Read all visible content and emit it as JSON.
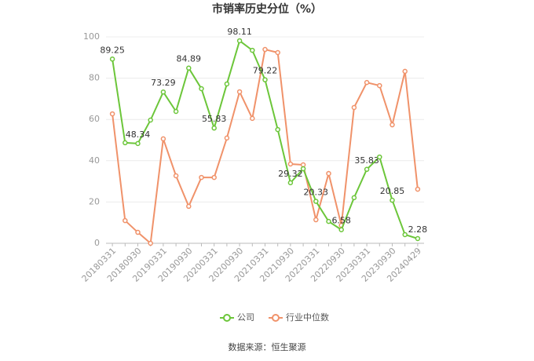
{
  "chart_data": {
    "type": "line",
    "title": "市销率历史分位（%）",
    "source": "数据来源：恒生聚源",
    "categories": [
      "20180331",
      null,
      "20180930",
      null,
      "20190331",
      null,
      "20190930",
      null,
      "20200331",
      null,
      "20200930",
      null,
      "20210331",
      null,
      "20210930",
      null,
      "20220331",
      null,
      "20220930",
      null,
      "20230331",
      null,
      "20230930",
      null,
      "20240429"
    ],
    "series": [
      {
        "name": "公司",
        "color": "#6cc63a",
        "values": [
          89.25,
          48.7,
          48.34,
          59.7,
          73.29,
          63.9,
          84.89,
          74.9,
          55.83,
          77.2,
          98.11,
          93.5,
          79.22,
          55.1,
          29.32,
          36.1,
          20.33,
          10.6,
          6.58,
          22.1,
          35.83,
          41.8,
          20.85,
          4.2,
          2.28
        ]
      },
      {
        "name": "行业中位数",
        "color": "#f0926a",
        "values": [
          62.7,
          11,
          5.3,
          0,
          50.6,
          32.7,
          17.9,
          31.9,
          31.9,
          51,
          73.4,
          60.5,
          93.9,
          92.4,
          38.4,
          38,
          11.4,
          33.8,
          8.7,
          65.8,
          77.9,
          76.4,
          57.4,
          83.3,
          26.2
        ]
      }
    ],
    "ylim": [
      0,
      100
    ],
    "yticks": [
      0,
      20,
      40,
      60,
      80,
      100
    ],
    "grid": true,
    "legend": "bottom"
  }
}
